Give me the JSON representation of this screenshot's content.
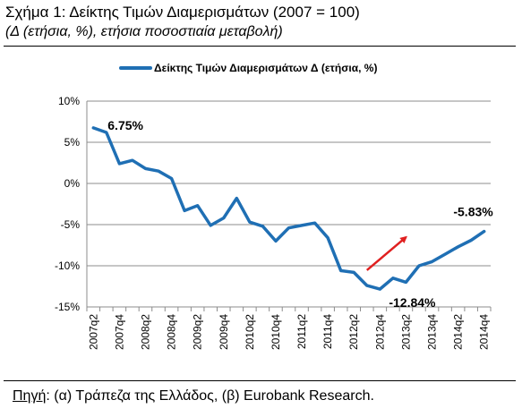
{
  "figure": {
    "title": "Σχήμα 1: Δείκτης Τιμών Διαμερισμάτων (2007 = 100)",
    "subtitle": "(Δ (ετήσια, %), ετήσια ποσοστιαία μεταβολή)",
    "source_label": "Πηγή",
    "source_text": ": (α) Τράπεζα της Ελλάδος, (β) Eurobank Research."
  },
  "chart_data": {
    "type": "line",
    "ylim": [
      -15,
      10
    ],
    "yticks": [
      "10%",
      "5%",
      "0%",
      "-5%",
      "-10%",
      "-15%"
    ],
    "grid": true,
    "legend_position": "top",
    "line_color": "#1f6fb4",
    "arrow_color": "#e02020",
    "x": [
      "2007q2",
      "2007q3",
      "2007q4",
      "2008q1",
      "2008q2",
      "2008q3",
      "2008q4",
      "2009q1",
      "2009q2",
      "2009q3",
      "2009q4",
      "2010q1",
      "2010q2",
      "2010q3",
      "2010q4",
      "2011q1",
      "2011q2",
      "2011q3",
      "2011q4",
      "2012q1",
      "2012q2",
      "2012q3",
      "2012q4",
      "2013q1",
      "2013q2",
      "2013q3",
      "2013q4",
      "2014q1",
      "2014q2",
      "2014q3",
      "2014q4"
    ],
    "xtick_labels": [
      "2007q2",
      "2007q4",
      "2008q2",
      "2008q4",
      "2009q2",
      "2009q4",
      "2010q2",
      "2010q4",
      "2011q2",
      "2011q4",
      "2012q2",
      "2012q4",
      "2013q2",
      "2013q4",
      "2014q2",
      "2014q4"
    ],
    "series": [
      {
        "name": "Δείκτης Τιμών Διαμερισμάτων Δ (ετήσια, %)",
        "values": [
          6.75,
          6.2,
          2.4,
          2.8,
          1.8,
          1.5,
          0.6,
          -3.3,
          -2.7,
          -5.1,
          -4.2,
          -1.8,
          -4.7,
          -5.2,
          -7.0,
          -5.4,
          -5.1,
          -4.8,
          -6.6,
          -10.6,
          -10.8,
          -12.4,
          -12.84,
          -11.5,
          -12.0,
          -10.0,
          -9.5,
          -8.6,
          -7.7,
          -6.9,
          -5.83
        ]
      }
    ],
    "annotations": {
      "first": "6.75%",
      "min": "-12.84%",
      "last": "-5.83%"
    }
  }
}
